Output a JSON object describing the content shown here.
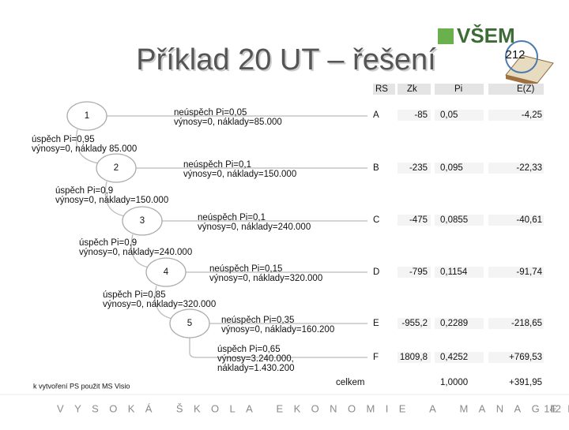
{
  "header": {
    "title": "Příklad 20 UT – řešení",
    "logo": "VŠEM",
    "badge": "212"
  },
  "tree": {
    "nodes": [
      "1",
      "2",
      "3",
      "4",
      "5"
    ],
    "failure": [
      [
        "neúspěch Pi=0,05",
        "výnosy=0, náklady=85.000"
      ],
      [
        "neúspěch Pi=0,1",
        "výnosy=0, náklady=150.000"
      ],
      [
        "neúspěch Pi=0,1",
        "výnosy=0, náklady=240.000"
      ],
      [
        "neúspěch Pi=0,15",
        "výnosy=0, náklady=320.000"
      ],
      [
        "neúspěch Pi=0,35",
        "výnosy=0, náklady=160.200"
      ]
    ],
    "success": [
      [
        "úspěch Pi=0,95",
        "výnosy=0, náklady 85.000"
      ],
      [
        "úspěch Pi=0,9",
        "výnosy=0, náklady=150.000"
      ],
      [
        "úspěch Pi=0,9",
        "výnosy=0, náklady=240.000"
      ],
      [
        "úspěch Pi=0,85",
        "výnosy=0, náklady=320.000"
      ],
      [
        "úspěch Pi=0,65",
        "výnosy=3.240.000,",
        "náklady=1.430.200"
      ]
    ]
  },
  "table": {
    "headers": [
      "RS",
      "Zk",
      "Pi",
      "E(Z)"
    ],
    "rows": [
      [
        "A",
        "-85",
        "0,05",
        "-4,25"
      ],
      [
        "B",
        "-235",
        "0,095",
        "-22,33"
      ],
      [
        "C",
        "-475",
        "0,0855",
        "-40,61"
      ],
      [
        "D",
        "-795",
        "0,1154",
        "-91,74"
      ],
      [
        "E",
        "-955,2",
        "0,2289",
        "-218,65"
      ],
      [
        "F",
        "1809,8",
        "0,4252",
        "+769,53"
      ]
    ],
    "total": [
      "celkem",
      "1,0000",
      "+391,95"
    ]
  },
  "footer": {
    "note": "k vytvoření PS použit MS Visio",
    "school": "VYSOKÁ ŠKOLA EKONOMIE A MANAGEMENTU",
    "page": "142"
  }
}
